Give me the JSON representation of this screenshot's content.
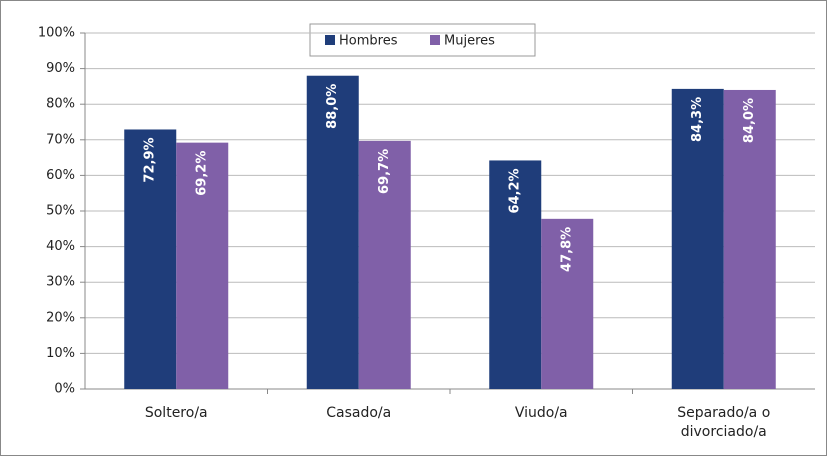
{
  "chart_data": {
    "type": "bar",
    "categories": [
      "Soltero/a",
      "Casado/a",
      "Viudo/a",
      "Separado/a o divorciado/a"
    ],
    "series": [
      {
        "name": "Hombres",
        "color": "#1f3d7a",
        "values": [
          72.9,
          88.0,
          64.2,
          84.3
        ],
        "value_labels": [
          "72,9%",
          "88,0%",
          "64,2%",
          "84,3%"
        ]
      },
      {
        "name": "Mujeres",
        "color": "#8060a8",
        "values": [
          69.2,
          69.7,
          47.8,
          84.0
        ],
        "value_labels": [
          "69,2%",
          "69,7%",
          "47,8%",
          "84,0%"
        ]
      }
    ],
    "ylim": [
      0,
      100
    ],
    "yticks": [
      {
        "value": 0,
        "label": "0%"
      },
      {
        "value": 10,
        "label": "10%"
      },
      {
        "value": 20,
        "label": "20%"
      },
      {
        "value": 30,
        "label": "30%"
      },
      {
        "value": 40,
        "label": "40%"
      },
      {
        "value": 50,
        "label": "50%"
      },
      {
        "value": 60,
        "label": "60%"
      },
      {
        "value": 70,
        "label": "70%"
      },
      {
        "value": 80,
        "label": "80%"
      },
      {
        "value": 90,
        "label": "90%"
      },
      {
        "value": 100,
        "label": "100%"
      }
    ],
    "grid": true,
    "legend": "top"
  }
}
